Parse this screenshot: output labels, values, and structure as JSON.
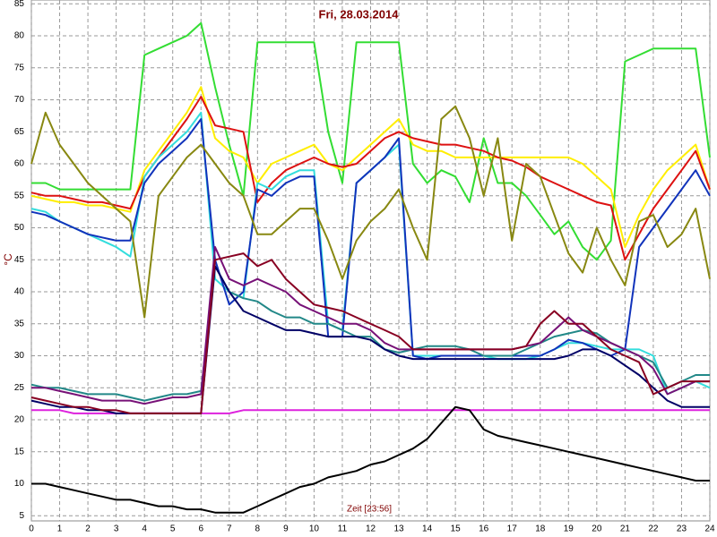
{
  "chart_data": {
    "type": "line",
    "title": "Fri, 28.03.2014",
    "y_label": "°C",
    "x_label": "Zeit [23:56]",
    "grid": true,
    "xlim": [
      0,
      24
    ],
    "ylim": [
      4.2,
      85.6
    ],
    "xticks": [
      0,
      1,
      2,
      3,
      4,
      5,
      6,
      7,
      8,
      9,
      10,
      11,
      12,
      13,
      14,
      15,
      16,
      17,
      18,
      19,
      20,
      21,
      22,
      23,
      24
    ],
    "yticks": [
      5,
      10,
      15,
      20,
      25,
      30,
      35,
      40,
      45,
      50,
      55,
      60,
      65,
      70,
      75,
      80,
      85
    ],
    "x": [
      0,
      0.5,
      1,
      1.5,
      2,
      2.5,
      3,
      3.5,
      4,
      4.5,
      5,
      5.5,
      6,
      6.5,
      7,
      7.5,
      8,
      8.5,
      9,
      9.5,
      10,
      10.5,
      11,
      11.5,
      12,
      12.5,
      13,
      13.5,
      14,
      14.5,
      15,
      15.5,
      16,
      16.5,
      17,
      17.5,
      18,
      18.5,
      19,
      19.5,
      20,
      20.5,
      21,
      21.5,
      22,
      22.5,
      23,
      23.5,
      24
    ],
    "series": [
      {
        "color": "#33dd33",
        "values": [
          57,
          57,
          56,
          56,
          56,
          56,
          56,
          56,
          77,
          78,
          79,
          80,
          82,
          72,
          63,
          55,
          79,
          79,
          79,
          79,
          79,
          65,
          57,
          79,
          79,
          79,
          79,
          60,
          57,
          59,
          58,
          54,
          64,
          57,
          57,
          55,
          52,
          49,
          51,
          47,
          45,
          48,
          76,
          77,
          78,
          78,
          78,
          78,
          61
        ]
      },
      {
        "color": "#ffee00",
        "values": [
          55,
          54.5,
          54,
          54,
          53.5,
          53.5,
          53,
          52.5,
          59,
          62,
          65,
          68,
          72,
          64,
          62,
          61,
          57,
          60,
          61,
          62,
          63,
          60,
          59,
          61,
          63,
          65,
          67,
          63,
          62,
          62,
          61,
          61,
          61,
          61,
          61,
          61,
          61,
          61,
          61,
          60,
          58,
          56,
          47,
          52,
          56,
          59,
          61,
          63,
          56
        ]
      },
      {
        "color": "#dd1111",
        "values": [
          55.5,
          55,
          55,
          54.5,
          54,
          54,
          53.5,
          53,
          58,
          61,
          64,
          67,
          70.5,
          66,
          65.5,
          65,
          54,
          57,
          59,
          60,
          61,
          60,
          59.5,
          60,
          62,
          64,
          65,
          64,
          63.5,
          63,
          63,
          62.5,
          62,
          61,
          60.5,
          59.5,
          58,
          57,
          56,
          55,
          54,
          53.5,
          45,
          49,
          53,
          56,
          59,
          62,
          56
        ]
      },
      {
        "color": "#33dddd",
        "values": [
          53,
          52.5,
          51,
          50,
          49,
          48,
          47,
          45.5,
          58,
          61,
          63,
          65,
          68,
          42,
          40,
          39,
          57,
          56,
          58,
          59,
          59,
          35,
          34,
          57,
          59,
          61,
          63,
          30,
          30,
          30,
          30,
          30,
          30,
          29.5,
          29.5,
          29.5,
          30,
          31,
          32,
          32,
          31.5,
          31,
          31,
          31,
          30,
          24,
          25,
          26,
          25
        ]
      },
      {
        "color": "#1133bb",
        "values": [
          52.5,
          52,
          51,
          50,
          49,
          48.5,
          48,
          48,
          57,
          60,
          62,
          64,
          67,
          45,
          38,
          40,
          56,
          55,
          57,
          58,
          58,
          33,
          33,
          57,
          59,
          61,
          64,
          30,
          29.5,
          30,
          30,
          30,
          30,
          30,
          30,
          30,
          30,
          31,
          32.5,
          32,
          31,
          30,
          31,
          47,
          50,
          53,
          56,
          59,
          55
        ]
      },
      {
        "color": "#888811",
        "values": [
          60,
          68,
          63,
          60,
          57,
          55,
          53,
          51,
          36,
          55,
          58,
          61,
          63,
          60,
          57,
          55,
          49,
          49,
          51,
          53,
          53,
          48,
          42,
          48,
          51,
          53,
          56,
          50,
          45,
          67,
          69,
          64,
          55,
          64,
          48,
          60,
          58,
          52,
          46,
          43,
          50,
          45,
          41,
          51,
          52,
          47,
          49,
          53,
          42
        ]
      },
      {
        "color": "#dd22dd",
        "values": [
          21.5,
          21.5,
          21.5,
          21,
          21,
          21,
          21,
          21,
          21,
          21,
          21,
          21,
          21,
          21,
          21,
          21.5,
          21.5,
          21.5,
          21.5,
          21.5,
          21.5,
          21.5,
          21.5,
          21.5,
          21.5,
          21.5,
          21.5,
          21.5,
          21.5,
          21.5,
          21.5,
          21.5,
          21.5,
          21.5,
          21.5,
          21.5,
          21.5,
          21.5,
          21.5,
          21.5,
          21.5,
          21.5,
          21.5,
          21.5,
          21.5,
          21.5,
          21.5,
          21.5,
          21.5
        ]
      },
      {
        "color": "#000000",
        "values": [
          10,
          10,
          9.5,
          9,
          8.5,
          8,
          7.5,
          7.5,
          7,
          6.5,
          6.5,
          6,
          6,
          5.5,
          5.5,
          5.5,
          6.5,
          7.5,
          8.5,
          9.5,
          10,
          11,
          11.5,
          12,
          13,
          13.5,
          14.5,
          15.5,
          17,
          19.5,
          22,
          21.5,
          18.5,
          17.5,
          17,
          16.5,
          16,
          15.5,
          15,
          14.5,
          14,
          13.5,
          13,
          12.5,
          12,
          11.5,
          11,
          10.5,
          10.5
        ]
      },
      {
        "color": "#228888",
        "values": [
          25.5,
          25,
          25,
          24.5,
          24,
          24,
          24,
          23.5,
          23,
          23.5,
          24,
          24,
          24.5,
          44,
          40,
          39,
          38.5,
          37,
          36,
          36,
          35,
          35,
          34,
          33,
          33,
          31,
          30.5,
          31,
          31.5,
          31.5,
          31.5,
          31,
          30,
          30,
          30,
          31,
          32,
          33,
          33.5,
          34,
          33.5,
          32,
          31,
          30,
          29,
          25,
          26,
          27,
          27
        ]
      },
      {
        "color": "#771177",
        "values": [
          25,
          25,
          24.5,
          24,
          23.5,
          23,
          23,
          23,
          22.5,
          23,
          23.5,
          23.5,
          24,
          47,
          42,
          41,
          42,
          41,
          40,
          38,
          37,
          36,
          35,
          35,
          34,
          32,
          31,
          31,
          31,
          31,
          31,
          31,
          31,
          31,
          31,
          31.5,
          32,
          34,
          36,
          34,
          33,
          32,
          31,
          30,
          28,
          24,
          25,
          26,
          26
        ]
      },
      {
        "color": "#000066",
        "values": [
          23,
          22.5,
          22,
          22,
          21.5,
          21.5,
          21,
          21,
          21,
          21,
          21,
          21,
          21,
          44,
          40,
          37,
          36,
          35,
          34,
          34,
          33.5,
          33,
          33,
          33,
          32.5,
          31,
          30,
          29.5,
          29.5,
          29.5,
          29.5,
          29.5,
          29.5,
          29.5,
          29.5,
          29.5,
          29.5,
          29.5,
          30,
          31,
          31,
          30,
          28.5,
          27,
          25,
          23,
          22,
          22,
          22
        ]
      },
      {
        "color": "#880022",
        "values": [
          23.5,
          23,
          22.5,
          22,
          22,
          21.5,
          21.5,
          21,
          21,
          21,
          21,
          21,
          21,
          45,
          45.5,
          46,
          44,
          45,
          42,
          40,
          38,
          37.5,
          37,
          36,
          35,
          34,
          33,
          31,
          31,
          31,
          31,
          31,
          31,
          31,
          31,
          31.5,
          35,
          37,
          35,
          35,
          33,
          31,
          30,
          29,
          24,
          25,
          26,
          26,
          26
        ]
      }
    ]
  }
}
